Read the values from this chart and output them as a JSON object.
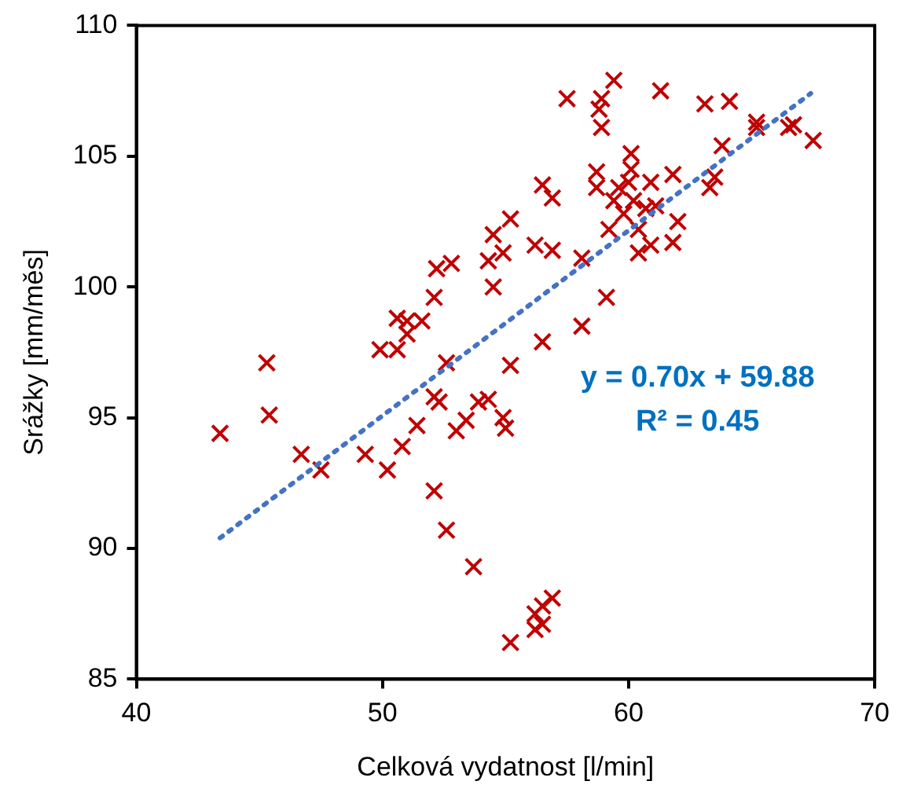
{
  "chart_data": {
    "type": "scatter",
    "xlabel": "Celková vydatnost [l/min]",
    "ylabel": "Srážky [mm/měs]",
    "xlim": [
      40,
      70
    ],
    "xticks": [
      40,
      50,
      60,
      70
    ],
    "ylim": [
      85,
      110
    ],
    "yticks": [
      85,
      90,
      95,
      100,
      105,
      110
    ],
    "grid": false,
    "legend": false,
    "annotations": [
      "y = 0.70x + 59.88",
      "R² = 0.45"
    ],
    "series": [
      {
        "marker": "cross",
        "color": "#c00000",
        "x": [
          43.4,
          45.3,
          45.4,
          46.7,
          47.5,
          49.3,
          50.2,
          50.8,
          51.4,
          52.1,
          52.6,
          53.7,
          52.6,
          49.9,
          50.6,
          51.0,
          52.1,
          52.3,
          53.0,
          53.4,
          53.9,
          54.3,
          54.9,
          55.0,
          55.2,
          55.2,
          54.5,
          55.2,
          54.3,
          54.9,
          54.5,
          52.2,
          52.8,
          52.1,
          50.6,
          51.0,
          51.6,
          57.5,
          58.9,
          59.4,
          58.8,
          58.9,
          61.3,
          63.1,
          64.1,
          65.2,
          65.2,
          66.5,
          66.7,
          67.5,
          63.8,
          60.1,
          58.7,
          60.1,
          61.8,
          63.5,
          63.3,
          56.5,
          56.9,
          58.7,
          59.6,
          60.0,
          60.9,
          59.4,
          60.2,
          59.8,
          60.7,
          61.1,
          62.0,
          59.2,
          60.4,
          56.2,
          56.9,
          58.1,
          60.9,
          61.8,
          60.4,
          59.1,
          58.1,
          56.5,
          56.9,
          56.5,
          56.2,
          56.2,
          56.5
        ],
        "values": [
          94.4,
          97.1,
          95.1,
          93.6,
          93.0,
          93.6,
          93.0,
          93.9,
          94.7,
          92.2,
          90.7,
          89.3,
          97.1,
          97.6,
          97.6,
          98.2,
          95.8,
          95.6,
          94.5,
          94.9,
          95.6,
          95.7,
          95.0,
          94.6,
          86.4,
          97.0,
          102.0,
          102.6,
          101.0,
          101.3,
          100.0,
          100.7,
          100.9,
          99.6,
          98.8,
          98.7,
          98.7,
          107.2,
          107.2,
          107.9,
          106.8,
          106.1,
          107.5,
          107.0,
          107.1,
          106.3,
          106.1,
          106.1,
          106.2,
          105.6,
          105.4,
          105.1,
          104.4,
          104.5,
          104.3,
          104.2,
          103.8,
          103.9,
          103.4,
          103.8,
          103.8,
          104.0,
          104.0,
          103.3,
          103.3,
          102.8,
          103.0,
          103.1,
          102.5,
          102.2,
          102.2,
          101.6,
          101.4,
          101.1,
          101.6,
          101.7,
          101.3,
          99.6,
          98.5,
          97.9,
          88.1,
          87.8,
          87.5,
          86.9,
          87.1
        ]
      },
      {
        "type": "line",
        "marker": "none",
        "line_style": "dotted",
        "color": "#4472c4",
        "x": [
          43.4,
          67.4
        ],
        "values": [
          90.4,
          107.4
        ]
      }
    ]
  }
}
